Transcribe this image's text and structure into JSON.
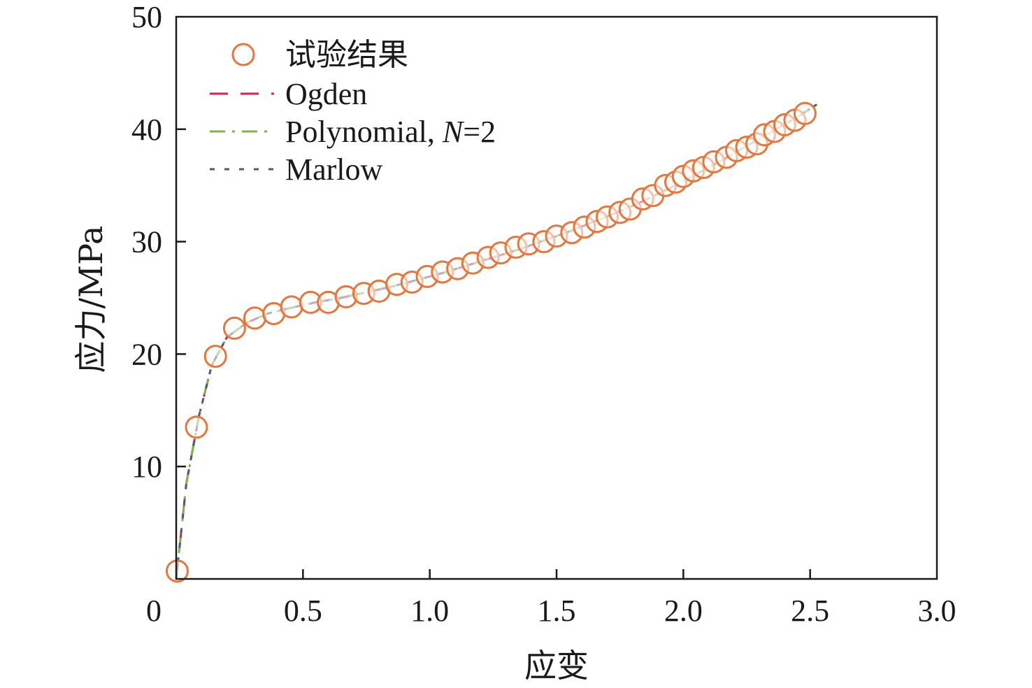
{
  "chart_data": {
    "type": "scatter",
    "xlabel": "应变",
    "ylabel": "应力/MPa",
    "xlim": [
      0,
      3.0
    ],
    "ylim": [
      0,
      50
    ],
    "x_ticks": [
      0,
      0.5,
      1.0,
      1.5,
      2.0,
      2.5,
      3.0
    ],
    "x_tick_labels": [
      "0",
      "0.5",
      "1.0",
      "1.5",
      "2.0",
      "2.5",
      "3.0"
    ],
    "y_ticks": [
      10,
      20,
      30,
      40,
      50
    ],
    "y_tick_labels": [
      "10",
      "20",
      "30",
      "40",
      "50"
    ],
    "grid": false,
    "legend_position": "top-left",
    "series": [
      {
        "name": "试验结果",
        "kind": "markers",
        "marker": "open-circle",
        "color": "#e8753a",
        "points": [
          [
            0.004,
            0.7
          ],
          [
            0.08,
            13.5
          ],
          [
            0.155,
            19.8
          ],
          [
            0.23,
            22.3
          ],
          [
            0.31,
            23.2
          ],
          [
            0.385,
            23.6
          ],
          [
            0.455,
            24.2
          ],
          [
            0.53,
            24.6
          ],
          [
            0.6,
            24.6
          ],
          [
            0.67,
            25.1
          ],
          [
            0.74,
            25.4
          ],
          [
            0.8,
            25.6
          ],
          [
            0.87,
            26.2
          ],
          [
            0.93,
            26.4
          ],
          [
            0.99,
            26.9
          ],
          [
            1.05,
            27.3
          ],
          [
            1.11,
            27.6
          ],
          [
            1.17,
            28.1
          ],
          [
            1.23,
            28.6
          ],
          [
            1.28,
            29.0
          ],
          [
            1.34,
            29.5
          ],
          [
            1.39,
            29.8
          ],
          [
            1.45,
            30.0
          ],
          [
            1.5,
            30.5
          ],
          [
            1.56,
            30.8
          ],
          [
            1.61,
            31.3
          ],
          [
            1.66,
            31.8
          ],
          [
            1.7,
            32.2
          ],
          [
            1.75,
            32.6
          ],
          [
            1.79,
            32.9
          ],
          [
            1.84,
            33.8
          ],
          [
            1.88,
            34.1
          ],
          [
            1.93,
            35.0
          ],
          [
            1.97,
            35.3
          ],
          [
            2.0,
            35.8
          ],
          [
            2.04,
            36.3
          ],
          [
            2.08,
            36.6
          ],
          [
            2.12,
            37.1
          ],
          [
            2.17,
            37.5
          ],
          [
            2.21,
            38.1
          ],
          [
            2.25,
            38.4
          ],
          [
            2.29,
            38.7
          ],
          [
            2.32,
            39.5
          ],
          [
            2.36,
            39.8
          ],
          [
            2.4,
            40.4
          ],
          [
            2.44,
            40.8
          ],
          [
            2.48,
            41.4
          ]
        ]
      },
      {
        "name": "Ogden",
        "kind": "line",
        "dash": "long-dash",
        "color": "#d6204e",
        "points": [
          [
            0.0,
            0.0
          ],
          [
            0.04,
            8.5
          ],
          [
            0.09,
            14.5
          ],
          [
            0.14,
            19.0
          ],
          [
            0.2,
            21.5
          ],
          [
            0.28,
            22.8
          ],
          [
            0.36,
            23.6
          ],
          [
            0.45,
            24.1
          ],
          [
            0.55,
            24.6
          ],
          [
            0.65,
            25.0
          ],
          [
            0.75,
            25.5
          ],
          [
            0.85,
            26.0
          ],
          [
            0.95,
            26.6
          ],
          [
            1.05,
            27.2
          ],
          [
            1.15,
            27.9
          ],
          [
            1.25,
            28.6
          ],
          [
            1.35,
            29.3
          ],
          [
            1.45,
            30.1
          ],
          [
            1.55,
            30.9
          ],
          [
            1.65,
            31.8
          ],
          [
            1.75,
            32.7
          ],
          [
            1.85,
            33.7
          ],
          [
            1.95,
            34.8
          ],
          [
            2.05,
            36.0
          ],
          [
            2.15,
            37.2
          ],
          [
            2.25,
            38.5
          ],
          [
            2.35,
            39.8
          ],
          [
            2.45,
            41.1
          ],
          [
            2.54,
            42.4
          ]
        ]
      },
      {
        "name": "Polynomial, N=2",
        "kind": "line",
        "dash": "dash-dot",
        "color": "#7ab648",
        "points": [
          [
            0.0,
            0.0
          ],
          [
            0.04,
            8.5
          ],
          [
            0.09,
            14.5
          ],
          [
            0.14,
            19.0
          ],
          [
            0.2,
            21.5
          ],
          [
            0.28,
            22.8
          ],
          [
            0.36,
            23.6
          ],
          [
            0.45,
            24.1
          ],
          [
            0.55,
            24.6
          ],
          [
            0.65,
            25.0
          ],
          [
            0.75,
            25.5
          ],
          [
            0.85,
            26.0
          ],
          [
            0.95,
            26.6
          ],
          [
            1.05,
            27.2
          ],
          [
            1.15,
            27.9
          ],
          [
            1.25,
            28.6
          ],
          [
            1.35,
            29.3
          ],
          [
            1.45,
            30.1
          ],
          [
            1.55,
            30.9
          ],
          [
            1.65,
            31.8
          ],
          [
            1.75,
            32.7
          ],
          [
            1.85,
            33.7
          ],
          [
            1.95,
            34.8
          ],
          [
            2.05,
            36.0
          ],
          [
            2.15,
            37.2
          ],
          [
            2.25,
            38.5
          ],
          [
            2.35,
            39.8
          ],
          [
            2.45,
            41.1
          ],
          [
            2.54,
            42.4
          ]
        ]
      },
      {
        "name": "Marlow",
        "kind": "line",
        "dash": "short-dash",
        "color": "#4a5a7a",
        "points": [
          [
            0.0,
            0.0
          ],
          [
            0.04,
            8.5
          ],
          [
            0.09,
            14.5
          ],
          [
            0.14,
            19.0
          ],
          [
            0.2,
            21.5
          ],
          [
            0.28,
            22.8
          ],
          [
            0.36,
            23.6
          ],
          [
            0.45,
            24.1
          ],
          [
            0.55,
            24.6
          ],
          [
            0.65,
            25.0
          ],
          [
            0.75,
            25.5
          ],
          [
            0.85,
            26.0
          ],
          [
            0.95,
            26.6
          ],
          [
            1.05,
            27.2
          ],
          [
            1.15,
            27.9
          ],
          [
            1.25,
            28.6
          ],
          [
            1.35,
            29.3
          ],
          [
            1.45,
            30.1
          ],
          [
            1.55,
            30.9
          ],
          [
            1.65,
            31.8
          ],
          [
            1.75,
            32.7
          ],
          [
            1.85,
            33.7
          ],
          [
            1.95,
            34.8
          ],
          [
            2.05,
            36.0
          ],
          [
            2.15,
            37.2
          ],
          [
            2.25,
            38.5
          ],
          [
            2.35,
            39.8
          ],
          [
            2.45,
            41.1
          ],
          [
            2.54,
            42.4
          ]
        ]
      }
    ],
    "legend": [
      {
        "label": "试验结果",
        "symbol": "open-circle",
        "color": "#e8753a"
      },
      {
        "label": "Ogden",
        "symbol": "long-dash",
        "color": "#d6204e"
      },
      {
        "label_main": "Polynomial, ",
        "label_italic": "N",
        "label_tail": "=2",
        "symbol": "dash-dot",
        "color": "#7ab648"
      },
      {
        "label": "Marlow",
        "symbol": "short-dash",
        "color": "#4a5a7a"
      }
    ]
  }
}
